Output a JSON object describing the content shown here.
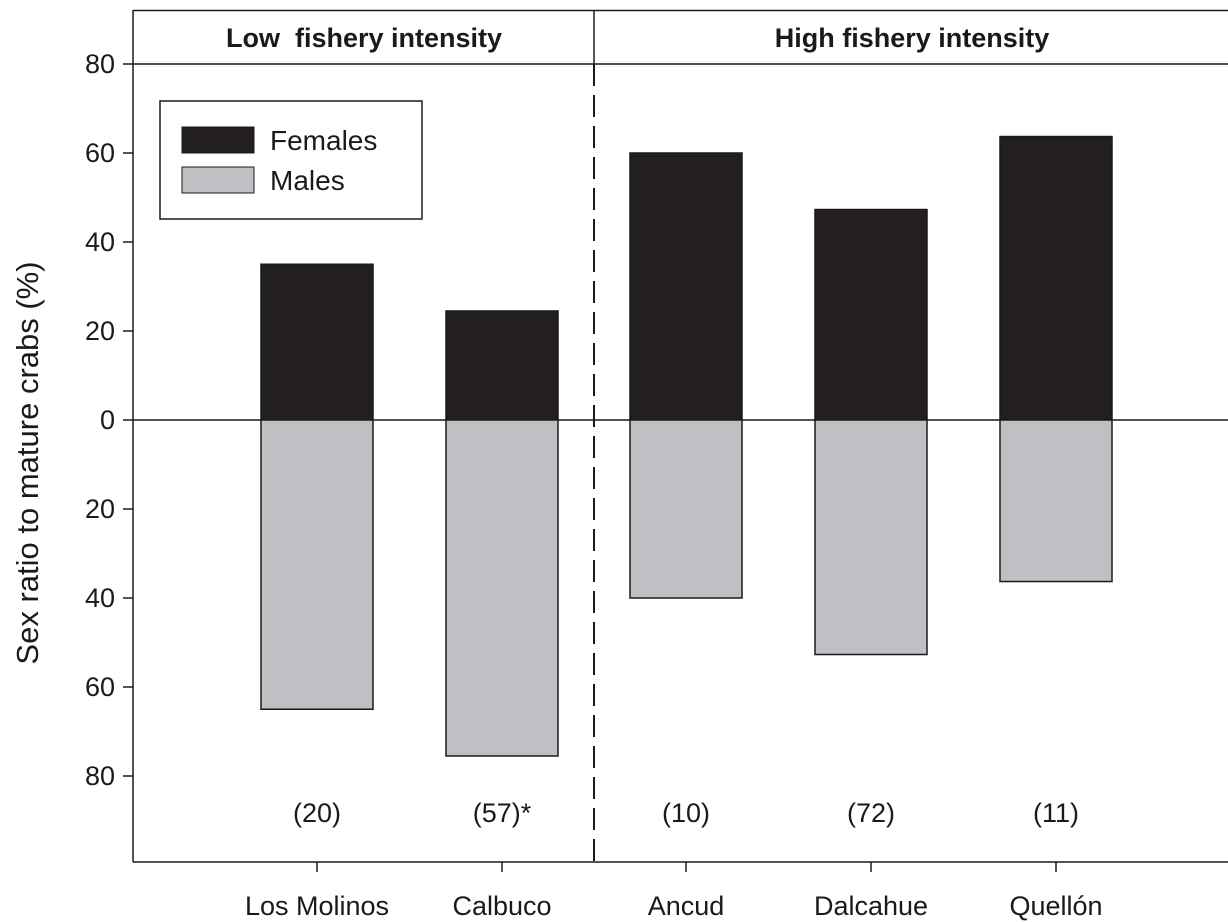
{
  "chart_data": {
    "type": "bar",
    "ylabel": "Sex ratio to mature crabs (%)",
    "xlabel": "",
    "ylim": [
      -80,
      80
    ],
    "y_tick_values": [
      80,
      60,
      40,
      20,
      0,
      -20,
      -40,
      -60,
      -80
    ],
    "y_tick_labels": [
      "80",
      "60",
      "40",
      "20",
      "0",
      "20",
      "40",
      "60",
      "80"
    ],
    "categories": [
      "Los Molinos",
      "Calbuco",
      "Ancud",
      "Dalcahue",
      "Quellón"
    ],
    "series": [
      {
        "name": "Females",
        "color": "#231f20",
        "values": [
          35,
          24.5,
          60,
          47.3,
          63.7
        ]
      },
      {
        "name": "Males",
        "color": "#bfc0c4",
        "values": [
          65,
          75.5,
          40,
          52.7,
          36.3
        ]
      }
    ],
    "sample_sizes": [
      "(20)",
      "(57)*",
      "(10)",
      "(72)",
      "(11)"
    ],
    "groups": [
      {
        "label": "Low  fishery intensity",
        "categories": [
          "Los Molinos",
          "Calbuco"
        ]
      },
      {
        "label": "High fishery intensity",
        "categories": [
          "Ancud",
          "Dalcahue",
          "Quellón"
        ]
      }
    ],
    "legend_position": "top-left",
    "grid": false
  }
}
